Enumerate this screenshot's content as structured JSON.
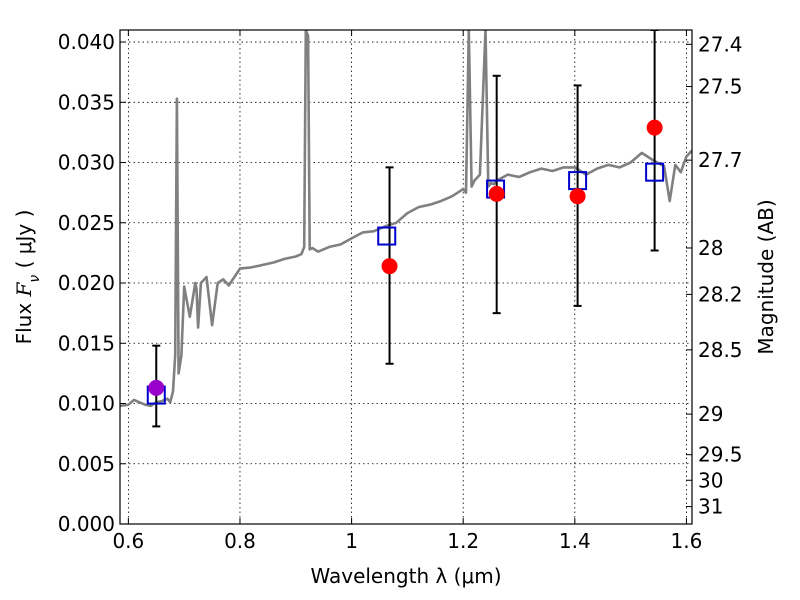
{
  "chart_data": {
    "type": "scatter",
    "xlabel": "Wavelength  λ (μm)",
    "ylabel_parts": {
      "prefix": "Flux ",
      "symbol": "F",
      "subscript": "ν",
      "unit": " ( μJy )"
    },
    "y2label": "Magnitude (AB)",
    "xlim": [
      0.585,
      1.61
    ],
    "ylim": [
      0.0,
      0.041
    ],
    "x_ticks": [
      0.6,
      0.8,
      1.0,
      1.2,
      1.4,
      1.6
    ],
    "x_tick_labels": [
      "0.6",
      "0.8",
      "1",
      "1.2",
      "1.4",
      "1.6"
    ],
    "y_ticks": [
      0.0,
      0.005,
      0.01,
      0.015,
      0.02,
      0.025,
      0.03,
      0.035,
      0.04
    ],
    "y_tick_labels": [
      "0.000",
      "0.005",
      "0.010",
      "0.015",
      "0.020",
      "0.025",
      "0.030",
      "0.035",
      "0.040"
    ],
    "y2_tick_labels": [
      "27.4",
      "27.5",
      "27.7",
      "28",
      "28.2",
      "28.5",
      "29",
      "29.5",
      "30",
      "31"
    ],
    "y2_tick_values": [
      27.4,
      27.5,
      27.7,
      28.0,
      28.2,
      28.5,
      29.0,
      29.5,
      30.0,
      31.0
    ],
    "y2_mag_zeropoint": 23.9,
    "grid": true,
    "colors": {
      "spectrum": "#808080",
      "observed": "#ff0000",
      "observed_first": "#9900cc",
      "model": "#0000cc",
      "errorbar": "#000000"
    },
    "series": [
      {
        "kind": "line",
        "x": [
          0.585,
          0.6,
          0.61,
          0.62,
          0.63,
          0.64,
          0.65,
          0.66,
          0.67,
          0.675,
          0.68,
          0.684,
          0.687,
          0.69,
          0.695,
          0.7,
          0.71,
          0.72,
          0.722,
          0.725,
          0.73,
          0.74,
          0.75,
          0.76,
          0.77,
          0.78,
          0.8,
          0.82,
          0.84,
          0.86,
          0.88,
          0.9,
          0.91,
          0.915,
          0.918,
          0.922,
          0.925,
          0.93,
          0.94,
          0.96,
          0.98,
          1.0,
          1.02,
          1.04,
          1.06,
          1.08,
          1.1,
          1.12,
          1.14,
          1.16,
          1.18,
          1.19,
          1.2,
          1.205,
          1.21,
          1.215,
          1.22,
          1.23,
          1.24,
          1.245,
          1.25,
          1.255,
          1.26,
          1.28,
          1.3,
          1.32,
          1.34,
          1.36,
          1.38,
          1.4,
          1.42,
          1.44,
          1.46,
          1.48,
          1.5,
          1.52,
          1.54,
          1.56,
          1.57,
          1.58,
          1.59,
          1.6,
          1.61
        ],
        "y": [
          0.0098,
          0.0099,
          0.0103,
          0.0101,
          0.0099,
          0.0098,
          0.0101,
          0.0102,
          0.0104,
          0.0101,
          0.011,
          0.014,
          0.0353,
          0.0125,
          0.014,
          0.0197,
          0.0172,
          0.02,
          0.0195,
          0.0163,
          0.02,
          0.0205,
          0.0165,
          0.02,
          0.0203,
          0.0198,
          0.0212,
          0.0213,
          0.0215,
          0.0217,
          0.022,
          0.0222,
          0.0224,
          0.023,
          0.041,
          0.0405,
          0.0228,
          0.0229,
          0.0226,
          0.023,
          0.0232,
          0.0237,
          0.0242,
          0.0243,
          0.0247,
          0.025,
          0.0258,
          0.0263,
          0.0265,
          0.0268,
          0.0272,
          0.0275,
          0.0278,
          0.0275,
          0.041,
          0.028,
          0.0285,
          0.029,
          0.041,
          0.028,
          0.0283,
          0.0282,
          0.0285,
          0.029,
          0.0288,
          0.0292,
          0.0295,
          0.0293,
          0.0296,
          0.0296,
          0.029,
          0.0295,
          0.0298,
          0.0296,
          0.03,
          0.0308,
          0.0302,
          0.0297,
          0.0268,
          0.0298,
          0.0292,
          0.0305,
          0.031
        ]
      },
      {
        "kind": "scatter",
        "marker": "square",
        "x": [
          0.65,
          1.063,
          1.258,
          1.405,
          1.543
        ],
        "y": [
          0.0107,
          0.0239,
          0.0278,
          0.0285,
          0.0292
        ]
      },
      {
        "kind": "scatter",
        "marker": "circle",
        "x": [
          0.65,
          1.068,
          1.26,
          1.405,
          1.543
        ],
        "y": [
          0.0113,
          0.0214,
          0.0274,
          0.0272,
          0.0329
        ],
        "yerr_low": [
          0.0081,
          0.0133,
          0.0175,
          0.0181,
          0.0227
        ],
        "yerr_high": [
          0.0148,
          0.0296,
          0.0372,
          0.0364,
          0.041
        ]
      }
    ]
  }
}
